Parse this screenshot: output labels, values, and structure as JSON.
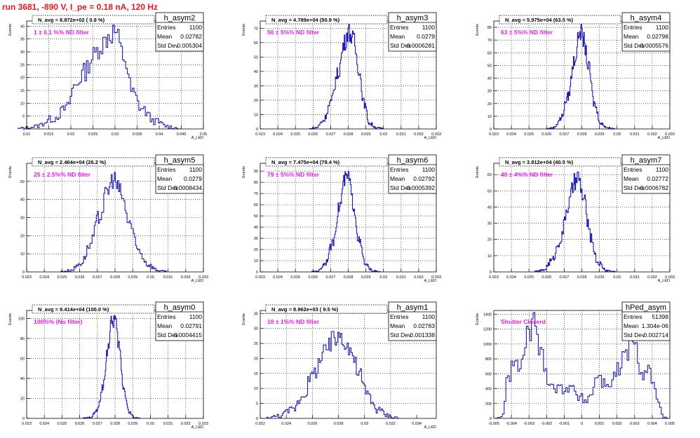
{
  "page_title": "run 3681,  -890 V, I_pe = 0.18 nA, 120 Hz",
  "colors": {
    "line": "#1d1db0",
    "text": "#000000",
    "annotation": "#e81ce8",
    "title_red": "#e8191c",
    "grid": "#000000"
  },
  "stats_labels": {
    "entries": "Entries",
    "mean": "Mean",
    "std": "Std Dev"
  },
  "chart_data": [
    {
      "type": "histogram",
      "title": "h_asym2",
      "nlabel": "N_avg = 8.872e+02 ( 0.9 %)",
      "annotation": "1 ± 0.1 %% ND filter",
      "ylabel": "Events",
      "xlabel": "A_LED",
      "xlim": [
        0.01,
        0.05
      ],
      "ylim": [
        0,
        42
      ],
      "xticks": [
        0.01,
        0.015,
        0.02,
        0.025,
        0.03,
        0.035,
        0.04,
        0.045,
        0.05
      ],
      "xtick_labels": [
        "0.01",
        "0.015",
        "0.02",
        "0.025",
        "0.03",
        "0.035",
        "0.04",
        "0.045",
        "0.05"
      ],
      "yticks": [
        0,
        5,
        10,
        15,
        20,
        25,
        30,
        35,
        40
      ],
      "stats": {
        "entries": "1100",
        "mean": "0.02782",
        "std": "0.005304"
      },
      "x": [
        0.012,
        0.016,
        0.019,
        0.021,
        0.023,
        0.025,
        0.027,
        0.029,
        0.03,
        0.032,
        0.034,
        0.036,
        0.039,
        0.042
      ],
      "y": [
        1,
        4,
        8,
        17,
        22,
        28,
        33,
        37,
        38,
        28,
        14,
        8,
        3,
        1
      ]
    },
    {
      "type": "histogram",
      "title": "h_asym3",
      "nlabel": "N_avg = 4.789e+04 (50.9 %)",
      "annotation": "50 ± 5%% ND filter",
      "ylabel": "Events",
      "xlabel": "A_LED",
      "xlim": [
        0.023,
        0.033
      ],
      "ylim": [
        0,
        75
      ],
      "xticks": [
        0.023,
        0.024,
        0.025,
        0.026,
        0.027,
        0.028,
        0.029,
        0.03,
        0.031,
        0.032,
        0.033
      ],
      "xtick_labels": [
        "0.023",
        "0.024",
        "0.025",
        "0.026",
        "0.027",
        "0.028",
        "0.029",
        "0.03",
        "0.031",
        "0.032",
        "0.033"
      ],
      "yticks": [
        0,
        10,
        20,
        30,
        40,
        50,
        60,
        70
      ],
      "stats": {
        "entries": "1100",
        "mean": "0.0279",
        "std": "0.0006281"
      },
      "x": [
        0.0262,
        0.0266,
        0.027,
        0.0274,
        0.0278,
        0.028,
        0.0283,
        0.0286,
        0.0289,
        0.0292,
        0.0296
      ],
      "y": [
        1,
        6,
        18,
        38,
        60,
        68,
        62,
        42,
        18,
        4,
        1
      ]
    },
    {
      "type": "histogram",
      "title": "h_asym4",
      "nlabel": "N_avg = 5.975e+04 (63.5 %)",
      "annotation": "63 ± 5%% ND filter",
      "ylabel": "Events",
      "xlabel": "A_LED",
      "xlim": [
        0.023,
        0.033
      ],
      "ylim": [
        0,
        85
      ],
      "xticks": [
        0.023,
        0.024,
        0.025,
        0.026,
        0.027,
        0.028,
        0.029,
        0.03,
        0.031,
        0.032,
        0.033
      ],
      "xtick_labels": [
        "0.023",
        "0.024",
        "0.025",
        "0.026",
        "0.027",
        "0.028",
        "0.029",
        "0.03",
        "0.031",
        "0.032",
        "0.033"
      ],
      "yticks": [
        0,
        10,
        20,
        30,
        40,
        50,
        60,
        70,
        80
      ],
      "stats": {
        "entries": "1100",
        "mean": "0.02798",
        "std": "0.0005576"
      },
      "x": [
        0.0264,
        0.0268,
        0.0272,
        0.0276,
        0.0279,
        0.0281,
        0.0284,
        0.0287,
        0.0291,
        0.0295
      ],
      "y": [
        1,
        8,
        25,
        55,
        78,
        70,
        48,
        20,
        4,
        1
      ]
    },
    {
      "type": "histogram",
      "title": "h_asym5",
      "nlabel": "N_avg = 2.464e+04 (26.2 %)",
      "annotation": "25 ± 2.5%% ND filter",
      "ylabel": "Events",
      "xlabel": "A_LED",
      "xlim": [
        0.023,
        0.033
      ],
      "ylim": [
        0,
        60
      ],
      "xticks": [
        0.023,
        0.024,
        0.025,
        0.026,
        0.027,
        0.028,
        0.029,
        0.03,
        0.031,
        0.032,
        0.033
      ],
      "xtick_labels": [
        "0.023",
        "0.024",
        "0.025",
        "0.026",
        "0.027",
        "0.028",
        "0.029",
        "0.03",
        "0.031",
        "0.032",
        "0.033"
      ],
      "yticks": [
        0,
        10,
        20,
        30,
        40,
        50
      ],
      "stats": {
        "entries": "1100",
        "mean": "0.0279",
        "std": "0.0008434"
      },
      "x": [
        0.0255,
        0.0261,
        0.0266,
        0.0271,
        0.0276,
        0.0279,
        0.0283,
        0.0288,
        0.0293,
        0.0299,
        0.0304
      ],
      "y": [
        1,
        5,
        15,
        30,
        45,
        52,
        44,
        28,
        12,
        4,
        1
      ]
    },
    {
      "type": "histogram",
      "title": "h_asym6",
      "nlabel": "N_avg = 7.475e+04 (79.4 %)",
      "annotation": "79 ± 5%% ND filter",
      "ylabel": "Events",
      "xlabel": "A_LED",
      "xlim": [
        0.023,
        0.033
      ],
      "ylim": [
        0,
        97
      ],
      "xticks": [
        0.023,
        0.024,
        0.025,
        0.026,
        0.027,
        0.028,
        0.029,
        0.03,
        0.031,
        0.032,
        0.033
      ],
      "xtick_labels": [
        "0.023",
        "0.024",
        "0.025",
        "0.026",
        "0.027",
        "0.028",
        "0.029",
        "0.03",
        "0.031",
        "0.032",
        "0.033"
      ],
      "yticks": [
        0,
        10,
        20,
        30,
        40,
        50,
        60,
        70,
        80,
        90
      ],
      "stats": {
        "entries": "1100",
        "mean": "0.02792",
        "std": "0.0005392"
      },
      "x": [
        0.0263,
        0.0267,
        0.0271,
        0.0275,
        0.0278,
        0.028,
        0.0283,
        0.0286,
        0.029,
        0.0294
      ],
      "y": [
        1,
        8,
        25,
        58,
        82,
        85,
        60,
        28,
        6,
        1
      ]
    },
    {
      "type": "histogram",
      "title": "h_asym7",
      "nlabel": "N_avg = 3.812e+04 (40.5 %)",
      "annotation": "40 ± 4%% ND filter",
      "ylabel": "Events",
      "xlabel": "A_LED",
      "xlim": [
        0.023,
        0.033
      ],
      "ylim": [
        0,
        67
      ],
      "xticks": [
        0.023,
        0.024,
        0.025,
        0.026,
        0.027,
        0.028,
        0.029,
        0.03,
        0.031,
        0.032,
        0.033
      ],
      "xtick_labels": [
        "0.023",
        "0.024",
        "0.025",
        "0.026",
        "0.027",
        "0.028",
        "0.029",
        "0.03",
        "0.031",
        "0.032",
        "0.033"
      ],
      "yticks": [
        0,
        10,
        20,
        30,
        40,
        50,
        60
      ],
      "stats": {
        "entries": "1100",
        "mean": "0.02772",
        "std": "0.0006782"
      },
      "x": [
        0.0258,
        0.0263,
        0.0268,
        0.0272,
        0.0276,
        0.0278,
        0.0281,
        0.0285,
        0.0289,
        0.0294
      ],
      "y": [
        1,
        7,
        20,
        40,
        55,
        58,
        45,
        22,
        6,
        1
      ]
    },
    {
      "type": "histogram",
      "title": "h_asym0",
      "nlabel": "N_avg = 9.414e+04 (100.0 %)",
      "annotation": "100%% (No filter)",
      "ylabel": "Events",
      "xlabel": "A_LED",
      "xlim": [
        0.023,
        0.033
      ],
      "ylim": [
        0,
        108
      ],
      "xticks": [
        0.023,
        0.024,
        0.025,
        0.026,
        0.027,
        0.028,
        0.029,
        0.03,
        0.031,
        0.032,
        0.033
      ],
      "xtick_labels": [
        "0.023",
        "0.024",
        "0.025",
        "0.026",
        "0.027",
        "0.028",
        "0.029",
        "0.03",
        "0.031",
        "0.032",
        "0.033"
      ],
      "yticks": [
        0,
        20,
        40,
        60,
        80,
        100
      ],
      "stats": {
        "entries": "1100",
        "mean": "0.02791",
        "std": "0.0004415"
      },
      "x": [
        0.0266,
        0.027,
        0.0273,
        0.0276,
        0.0278,
        0.028,
        0.0282,
        0.0285,
        0.0288,
        0.0291
      ],
      "y": [
        1,
        8,
        30,
        70,
        95,
        100,
        75,
        30,
        6,
        1
      ]
    },
    {
      "type": "histogram",
      "title": "h_asym1",
      "nlabel": "N_avg = 8.962e+03 ( 9.5 %)",
      "annotation": "10 ± 1%% ND filter",
      "ylabel": "Events",
      "xlabel": "A_LED",
      "xlim": [
        0.022,
        0.0355
      ],
      "ylim": [
        0,
        36
      ],
      "xticks": [
        0.022,
        0.024,
        0.026,
        0.028,
        0.03,
        0.032,
        0.034
      ],
      "xtick_labels": [
        "0.022",
        "0.024",
        "0.026",
        "0.028",
        "0.03",
        "0.032",
        "0.034"
      ],
      "yticks": [
        0,
        5,
        10,
        15,
        20,
        25,
        30,
        35
      ],
      "stats": {
        "entries": "1100",
        "mean": "0.02783",
        "std": "0.001338"
      },
      "x": [
        0.0235,
        0.0245,
        0.0253,
        0.026,
        0.0267,
        0.0273,
        0.0278,
        0.0283,
        0.0289,
        0.0295,
        0.0302,
        0.031,
        0.0318
      ],
      "y": [
        1,
        3,
        8,
        14,
        20,
        24,
        27,
        28,
        23,
        16,
        8,
        3,
        1
      ]
    },
    {
      "type": "histogram",
      "title": "hPed_asym",
      "nlabel": "",
      "annotation": "Shutter Closerd",
      "ylabel": "Events",
      "xlabel": "",
      "xlim": [
        -0.005,
        0.005
      ],
      "ylim": [
        0,
        1450
      ],
      "xticks": [
        -0.005,
        -0.004,
        -0.003,
        -0.002,
        -0.001,
        0,
        0.001,
        0.002,
        0.003,
        0.004,
        0.005
      ],
      "xtick_labels": [
        "-0.005",
        "-0.004",
        "-0.003",
        "-0.002",
        "-0.001",
        "0",
        "0.001",
        "0.002",
        "0.003",
        "0.004",
        "0.005"
      ],
      "yticks": [
        0,
        200,
        400,
        600,
        800,
        1000,
        1200,
        1400
      ],
      "stats": {
        "entries": "51398",
        "mean": "1.304e-06",
        "std": "0.002714"
      },
      "x": [
        -0.0045,
        -0.0042,
        -0.0039,
        -0.0035,
        -0.0031,
        -0.0027,
        -0.0023,
        -0.0019,
        -0.0015,
        -0.0011,
        -0.0007,
        -0.0003,
        0.0001,
        0.0005,
        0.0009,
        0.0013,
        0.0017,
        0.0021,
        0.0025,
        0.0028,
        0.0031,
        0.0034,
        0.0037,
        0.004,
        0.0043,
        0.0046
      ],
      "y": [
        50,
        500,
        750,
        650,
        1100,
        1300,
        850,
        550,
        400,
        400,
        450,
        300,
        250,
        300,
        600,
        450,
        500,
        650,
        850,
        1000,
        900,
        600,
        700,
        550,
        200,
        30
      ]
    }
  ]
}
